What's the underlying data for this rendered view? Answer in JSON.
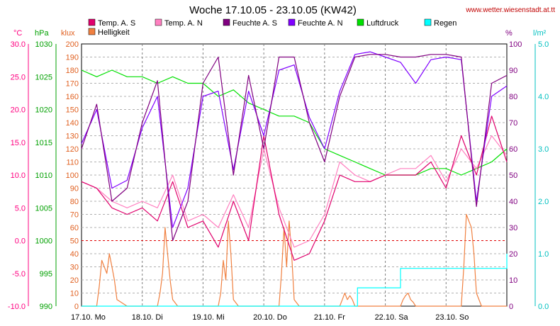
{
  "chart_data": {
    "type": "line",
    "title": "Woche 17.10.05 - 23.10.05 (KW42)",
    "source": "www.wetter.wiesenstadt.at.tt",
    "x_labels": [
      "17.10. Mo",
      "18.10. Di",
      "19.10. Mi",
      "20.10. Do",
      "21.10. Fr",
      "22.10. Sa",
      "23.10. So"
    ],
    "x_range_hours": [
      0,
      168
    ],
    "axes": {
      "temp": {
        "unit": "°C",
        "ticks": [
          "30.0",
          "25.0",
          "20.0",
          "15.0",
          "10.0",
          "5.0",
          "0.0",
          "-5.0",
          "-10.0"
        ],
        "range": [
          -10,
          30
        ],
        "color": "#ff0080"
      },
      "press": {
        "unit": "hPa",
        "ticks": [
          "1030",
          "1025",
          "1020",
          "1015",
          "1010",
          "1005",
          "1000",
          "995",
          "990"
        ],
        "range": [
          990,
          1030
        ],
        "color": "#00a000"
      },
      "lux": {
        "unit": "klux",
        "ticks": [
          "200",
          "190",
          "180",
          "170",
          "160",
          "150",
          "140",
          "130",
          "120",
          "110",
          "100",
          "90",
          "80",
          "70",
          "60",
          "50",
          "40",
          "30",
          "20",
          "10",
          "0"
        ],
        "range": [
          0,
          200
        ],
        "color": "#e06020"
      },
      "hum": {
        "unit": "%",
        "ticks": [
          "100",
          "90",
          "80",
          "70",
          "60",
          "50",
          "40",
          "30",
          "20",
          "10",
          "0"
        ],
        "range": [
          0,
          100
        ],
        "color": "#800080"
      },
      "rain": {
        "unit": "l/m²",
        "ticks": [
          "5.0",
          "4.0",
          "3.0",
          "2.0",
          "1.0",
          "0.0"
        ],
        "range": [
          0,
          5
        ],
        "color": "#00c0c0"
      }
    },
    "grid": true,
    "legend": [
      {
        "name": "Temp. A. S",
        "color": "#e0006c"
      },
      {
        "name": "Temp. A. N",
        "color": "#ff80c0"
      },
      {
        "name": "Feuchte A. S",
        "color": "#800080"
      },
      {
        "name": "Feuchte A. N",
        "color": "#8000ff"
      },
      {
        "name": "Luftdruck",
        "color": "#00e000"
      },
      {
        "name": "Regen",
        "color": "#00ffff"
      },
      {
        "name": "Helligkeit",
        "color": "#f08040"
      }
    ],
    "series": [
      {
        "name": "Temp. A. S",
        "axis": "temp",
        "color": "#e0006c",
        "x": [
          0,
          6,
          12,
          18,
          24,
          30,
          36,
          42,
          48,
          54,
          60,
          66,
          72,
          78,
          84,
          90,
          96,
          102,
          108,
          114,
          120,
          126,
          132,
          138,
          144,
          150,
          156,
          162,
          168
        ],
        "y": [
          9,
          8,
          5,
          4,
          5,
          3,
          9,
          2,
          3,
          -1,
          6,
          0,
          16,
          4,
          -3,
          -2,
          3,
          10,
          9,
          9,
          10,
          10,
          10,
          12,
          8,
          16,
          10,
          19,
          12
        ]
      },
      {
        "name": "Temp. A. N",
        "axis": "temp",
        "color": "#ff80c0",
        "x": [
          0,
          6,
          12,
          18,
          24,
          30,
          36,
          42,
          48,
          54,
          60,
          66,
          72,
          78,
          84,
          90,
          96,
          102,
          108,
          114,
          120,
          126,
          132,
          138,
          144,
          150,
          156,
          162,
          168
        ],
        "y": [
          9,
          8,
          6,
          5,
          6,
          5,
          10,
          3,
          4,
          2,
          7,
          2,
          14,
          5,
          -1,
          0,
          4,
          12,
          10,
          9,
          10,
          11,
          11,
          13,
          9,
          14,
          11,
          16,
          13
        ]
      },
      {
        "name": "Feuchte A. S",
        "axis": "hum",
        "color": "#800080",
        "x": [
          0,
          6,
          12,
          18,
          24,
          30,
          36,
          42,
          48,
          54,
          60,
          66,
          72,
          78,
          84,
          90,
          96,
          102,
          108,
          114,
          120,
          126,
          132,
          138,
          144,
          150,
          156,
          162,
          168
        ],
        "y": [
          60,
          77,
          40,
          45,
          70,
          86,
          25,
          40,
          85,
          95,
          50,
          88,
          60,
          95,
          95,
          70,
          55,
          80,
          95,
          96,
          96,
          95,
          95,
          96,
          96,
          95,
          38,
          85,
          88
        ]
      },
      {
        "name": "Feuchte A. N",
        "axis": "hum",
        "color": "#8000ff",
        "x": [
          0,
          6,
          12,
          18,
          24,
          30,
          36,
          42,
          48,
          54,
          60,
          66,
          72,
          78,
          84,
          90,
          96,
          102,
          108,
          114,
          120,
          126,
          132,
          138,
          144,
          150,
          156,
          162,
          168
        ],
        "y": [
          62,
          75,
          45,
          48,
          68,
          80,
          30,
          45,
          80,
          82,
          52,
          82,
          65,
          90,
          92,
          72,
          60,
          82,
          96,
          97,
          95,
          93,
          85,
          94,
          95,
          94,
          40,
          80,
          84
        ]
      },
      {
        "name": "Luftdruck",
        "axis": "press",
        "color": "#00e000",
        "x": [
          0,
          6,
          12,
          18,
          24,
          30,
          36,
          42,
          48,
          54,
          60,
          66,
          72,
          78,
          84,
          90,
          96,
          102,
          108,
          114,
          120,
          126,
          132,
          138,
          144,
          150,
          156,
          162,
          168
        ],
        "y": [
          1026,
          1025,
          1026,
          1025,
          1025,
          1024,
          1025,
          1024,
          1024,
          1022,
          1023,
          1021,
          1020,
          1019,
          1019,
          1018,
          1014,
          1013,
          1012,
          1011,
          1010,
          1010,
          1010,
          1011,
          1011,
          1010,
          1011,
          1012,
          1014
        ]
      },
      {
        "name": "Regen",
        "axis": "rain",
        "color": "#00ffff",
        "x": [
          0,
          96,
          97,
          108,
          109,
          125,
          126,
          145,
          146,
          167,
          168
        ],
        "y": [
          0,
          0,
          0,
          0,
          0.35,
          0.35,
          0.72,
          0.72,
          0.72,
          0.72,
          1.0
        ]
      },
      {
        "name": "Helligkeit",
        "axis": "lux",
        "color": "#f08040",
        "x": [
          0,
          6,
          7,
          8,
          9,
          10,
          11,
          12,
          13,
          14,
          18,
          24,
          30,
          31,
          32,
          33,
          34,
          35,
          36,
          38,
          42,
          48,
          54,
          55,
          56,
          57,
          58,
          59,
          60,
          62,
          66,
          72,
          78,
          79,
          80,
          81,
          82,
          83,
          84,
          86,
          90,
          96,
          102,
          103,
          104,
          105,
          106,
          107,
          108,
          110,
          114,
          120,
          126,
          127,
          128,
          129,
          130,
          131,
          132,
          134,
          138,
          144,
          150,
          151,
          152,
          153,
          154,
          155,
          156,
          158,
          162,
          168
        ],
        "y": [
          0,
          0,
          15,
          35,
          30,
          25,
          40,
          30,
          20,
          5,
          0,
          0,
          0,
          10,
          25,
          60,
          40,
          20,
          5,
          0,
          0,
          0,
          0,
          10,
          35,
          20,
          65,
          40,
          5,
          0,
          0,
          0,
          0,
          25,
          60,
          30,
          65,
          40,
          5,
          0,
          0,
          0,
          0,
          5,
          10,
          5,
          8,
          5,
          0,
          0,
          0,
          0,
          0,
          5,
          8,
          10,
          5,
          3,
          0,
          0,
          0,
          0,
          0,
          30,
          70,
          65,
          60,
          40,
          10,
          0,
          0,
          0
        ]
      }
    ]
  }
}
